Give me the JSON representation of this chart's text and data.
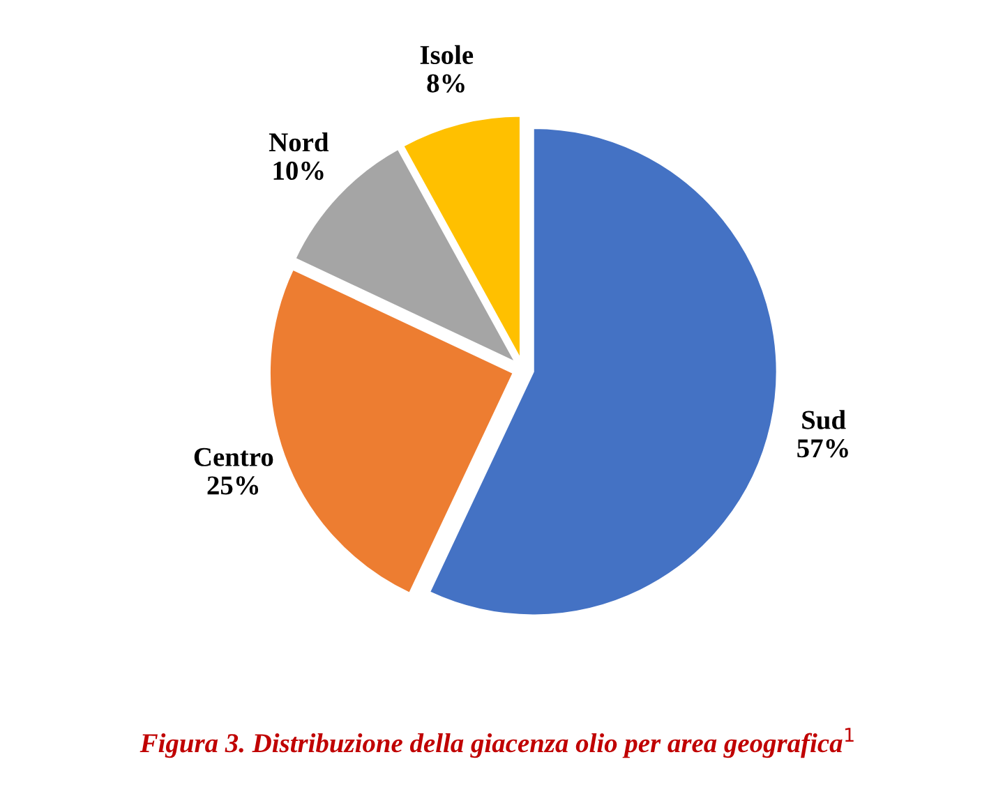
{
  "chart_data": {
    "type": "pie",
    "categories": [
      "Sud",
      "Centro",
      "Nord",
      "Isole"
    ],
    "values": [
      57,
      25,
      10,
      8
    ],
    "colors": [
      "#4472c4",
      "#ed7d31",
      "#a5a5a5",
      "#ffc000"
    ],
    "value_labels": [
      "57%",
      "25%",
      "10%",
      "8%"
    ],
    "annotations": [
      "Figura 3. Distribuzione della giacenza olio per area geografica$^{1}$"
    ],
    "legend": false
  }
}
